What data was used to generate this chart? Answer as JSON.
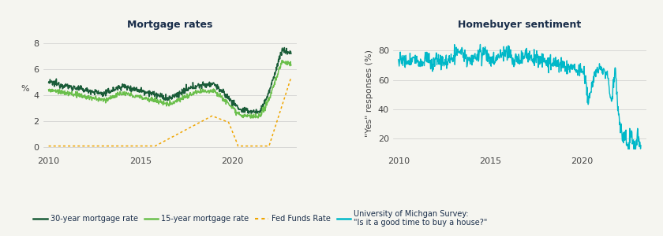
{
  "title_left": "Mortgage rates",
  "title_right": "Homebuyer sentiment",
  "ylabel_left": "%",
  "ylabel_right": "\"Yes\" responses (%)",
  "xlim_left": [
    2009.7,
    2023.5
  ],
  "xlim_right": [
    2009.7,
    2023.5
  ],
  "ylim_left": [
    -0.5,
    8.8
  ],
  "ylim_right": [
    10,
    92
  ],
  "yticks_left": [
    0,
    2,
    4,
    6,
    8
  ],
  "yticks_right": [
    20,
    40,
    60,
    80
  ],
  "xticks": [
    2010,
    2015,
    2020
  ],
  "color_30yr": "#1a5c38",
  "color_15yr": "#6abf4b",
  "color_fed": "#f0a500",
  "color_umich": "#00b8c8",
  "title_color": "#1a2e4a",
  "tick_color": "#444444",
  "bg_color": "#f5f5f0",
  "legend_labels": [
    "30-year mortgage rate",
    "15-year mortgage rate",
    "Fed Funds Rate",
    "University of Michgan Survey:\n\"Is it a good time to buy a house?\""
  ]
}
